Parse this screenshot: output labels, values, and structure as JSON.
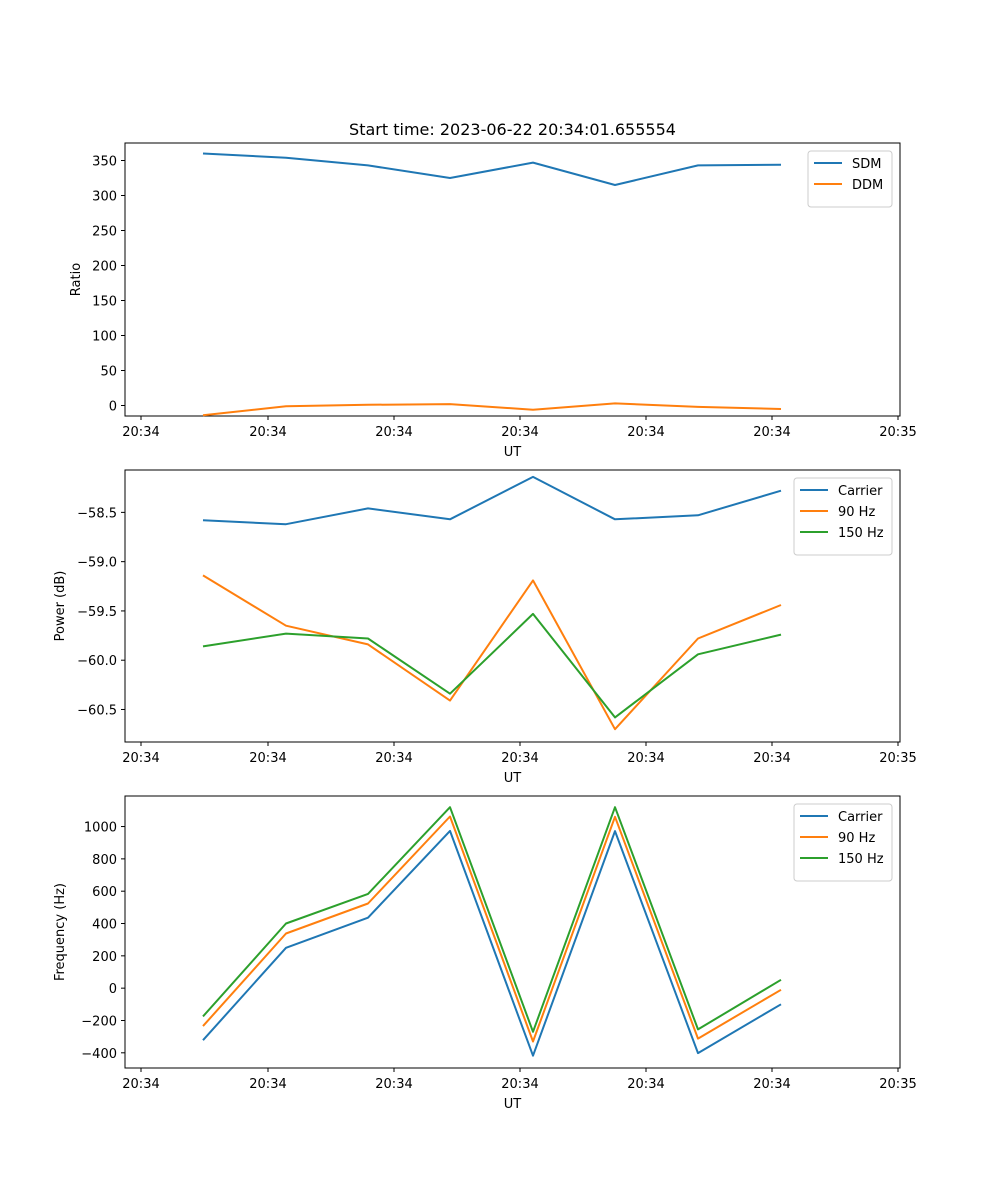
{
  "chart_data": [
    {
      "type": "line",
      "title": "Start time: 2023-06-22 20:34:01.655554",
      "xlabel": "UT",
      "ylabel": "Ratio",
      "x_tick_labels": [
        "20:34",
        "20:34",
        "20:34",
        "20:34",
        "20:34",
        "20:34",
        "20:35"
      ],
      "y_ticks": [
        0,
        50,
        100,
        150,
        200,
        250,
        300,
        350
      ],
      "ylim": [
        -15,
        375
      ],
      "legend_position": "top-right",
      "series": [
        {
          "name": "SDM",
          "color": "#1f77b4",
          "values": [
            360,
            354,
            343,
            325,
            347,
            315,
            343,
            344
          ]
        },
        {
          "name": "DDM",
          "color": "#ff7f0e",
          "values": [
            -14,
            -1,
            1,
            2,
            -6,
            3,
            -2,
            -5
          ]
        }
      ]
    },
    {
      "type": "line",
      "title": "",
      "xlabel": "UT",
      "ylabel": "Power (dB)",
      "x_tick_labels": [
        "20:34",
        "20:34",
        "20:34",
        "20:34",
        "20:34",
        "20:34",
        "20:35"
      ],
      "y_ticks": [
        -60.5,
        -60.0,
        -59.5,
        -59.0,
        -58.5
      ],
      "y_tick_labels": [
        "−60.5",
        "−60.0",
        "−59.5",
        "−59.0",
        "−58.5"
      ],
      "ylim": [
        -60.83,
        -58.07
      ],
      "legend_position": "top-right",
      "series": [
        {
          "name": "Carrier",
          "color": "#1f77b4",
          "values": [
            -58.58,
            -58.62,
            -58.46,
            -58.57,
            -58.14,
            -58.57,
            -58.53,
            -58.28
          ]
        },
        {
          "name": "90 Hz",
          "color": "#ff7f0e",
          "values": [
            -59.14,
            -59.65,
            -59.84,
            -60.41,
            -59.19,
            -60.7,
            -59.78,
            -59.44
          ]
        },
        {
          "name": "150 Hz",
          "color": "#2ca02c",
          "values": [
            -59.86,
            -59.73,
            -59.78,
            -60.34,
            -59.53,
            -60.58,
            -59.94,
            -59.74
          ]
        }
      ]
    },
    {
      "type": "line",
      "title": "",
      "xlabel": "UT",
      "ylabel": "Frequency (Hz)",
      "x_tick_labels": [
        "20:34",
        "20:34",
        "20:34",
        "20:34",
        "20:34",
        "20:34",
        "20:35"
      ],
      "y_ticks": [
        -400,
        -200,
        0,
        200,
        400,
        600,
        800,
        1000
      ],
      "y_tick_labels": [
        "−400",
        "−200",
        "0",
        "200",
        "400",
        "600",
        "800",
        "1000"
      ],
      "ylim": [
        -494,
        1189
      ],
      "legend_position": "top-right",
      "series": [
        {
          "name": "Carrier",
          "color": "#1f77b4",
          "values": [
            -322,
            250,
            436,
            973,
            -418,
            972,
            -402,
            -100
          ]
        },
        {
          "name": "90 Hz",
          "color": "#ff7f0e",
          "values": [
            -235,
            338,
            524,
            1062,
            -330,
            1060,
            -312,
            -10
          ]
        },
        {
          "name": "150 Hz",
          "color": "#2ca02c",
          "values": [
            -175,
            400,
            583,
            1120,
            -270,
            1120,
            -255,
            52
          ]
        }
      ]
    }
  ]
}
